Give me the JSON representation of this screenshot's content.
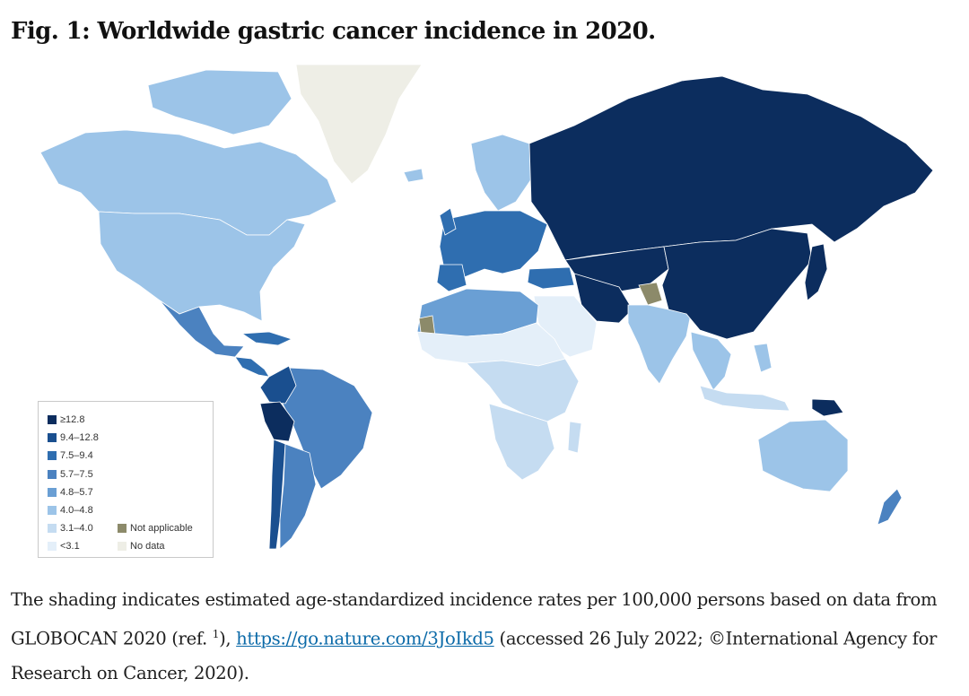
{
  "figure": {
    "title": "Fig. 1: Worldwide gastric cancer incidence in 2020."
  },
  "map": {
    "colors": {
      "c1": "#0c2d5e",
      "c2": "#1a4f8f",
      "c3": "#2f6eb0",
      "c4": "#4b82c0",
      "c5": "#6a9fd4",
      "c6": "#9cc4e8",
      "c7": "#c5dcf1",
      "c8": "#e4eff9",
      "na": "#8c8a6a",
      "nodata": "#eeeee6"
    },
    "regions": [
      {
        "name": "Greenland",
        "class": "nodata"
      },
      {
        "name": "Canada",
        "class": "c6"
      },
      {
        "name": "United States",
        "class": "c6"
      },
      {
        "name": "Mexico",
        "class": "c4"
      },
      {
        "name": "Central America",
        "class": "c3"
      },
      {
        "name": "Colombia",
        "class": "c2"
      },
      {
        "name": "Peru",
        "class": "c1"
      },
      {
        "name": "Brazil",
        "class": "c4"
      },
      {
        "name": "Chile",
        "class": "c2"
      },
      {
        "name": "Argentina",
        "class": "c4"
      },
      {
        "name": "Russia",
        "class": "c1"
      },
      {
        "name": "China",
        "class": "c1"
      },
      {
        "name": "Japan",
        "class": "c1"
      },
      {
        "name": "Europe",
        "class": "c3"
      },
      {
        "name": "Scandinavia",
        "class": "c6"
      },
      {
        "name": "Middle East",
        "class": "c8"
      },
      {
        "name": "Iran",
        "class": "c1"
      },
      {
        "name": "India",
        "class": "c6"
      },
      {
        "name": "North Africa",
        "class": "c5"
      },
      {
        "name": "Western Sahara",
        "class": "na"
      },
      {
        "name": "Kashmir",
        "class": "na"
      },
      {
        "name": "Sahel",
        "class": "c8"
      },
      {
        "name": "Central Africa",
        "class": "c7"
      },
      {
        "name": "Southern Africa",
        "class": "c7"
      },
      {
        "name": "Southeast Asia",
        "class": "c6"
      },
      {
        "name": "Indonesia",
        "class": "c7"
      },
      {
        "name": "Papua New Guinea",
        "class": "c1"
      },
      {
        "name": "Australia",
        "class": "c6"
      },
      {
        "name": "New Zealand",
        "class": "c4"
      }
    ]
  },
  "legend": {
    "items": [
      {
        "label": "≥12.8",
        "color": "#0c2d5e"
      },
      {
        "label": "9.4–12.8",
        "color": "#1a4f8f"
      },
      {
        "label": "7.5–9.4",
        "color": "#2f6eb0"
      },
      {
        "label": "5.7–7.5",
        "color": "#4b82c0"
      },
      {
        "label": "4.8–5.7",
        "color": "#6a9fd4"
      },
      {
        "label": "4.0–4.8",
        "color": "#9cc4e8"
      },
      {
        "label": "3.1–4.0",
        "color": "#c5dcf1"
      },
      {
        "label": "<3.1",
        "color": "#e4eff9"
      }
    ],
    "extra": [
      {
        "label": "Not applicable",
        "color": "#8c8a6a"
      },
      {
        "label": "No data",
        "color": "#eeeee6"
      }
    ]
  },
  "caption": {
    "text_1": "The shading indicates estimated age-standardized incidence rates per 100,000 persons based on data from GLOBOCAN 2020 (ref. ",
    "ref": "1",
    "text_2": "), ",
    "link": "https://go.nature.com/3JoIkd5",
    "text_3": " (accessed 26 July 2022; ©International Agency for Research on Cancer, 2020)."
  }
}
